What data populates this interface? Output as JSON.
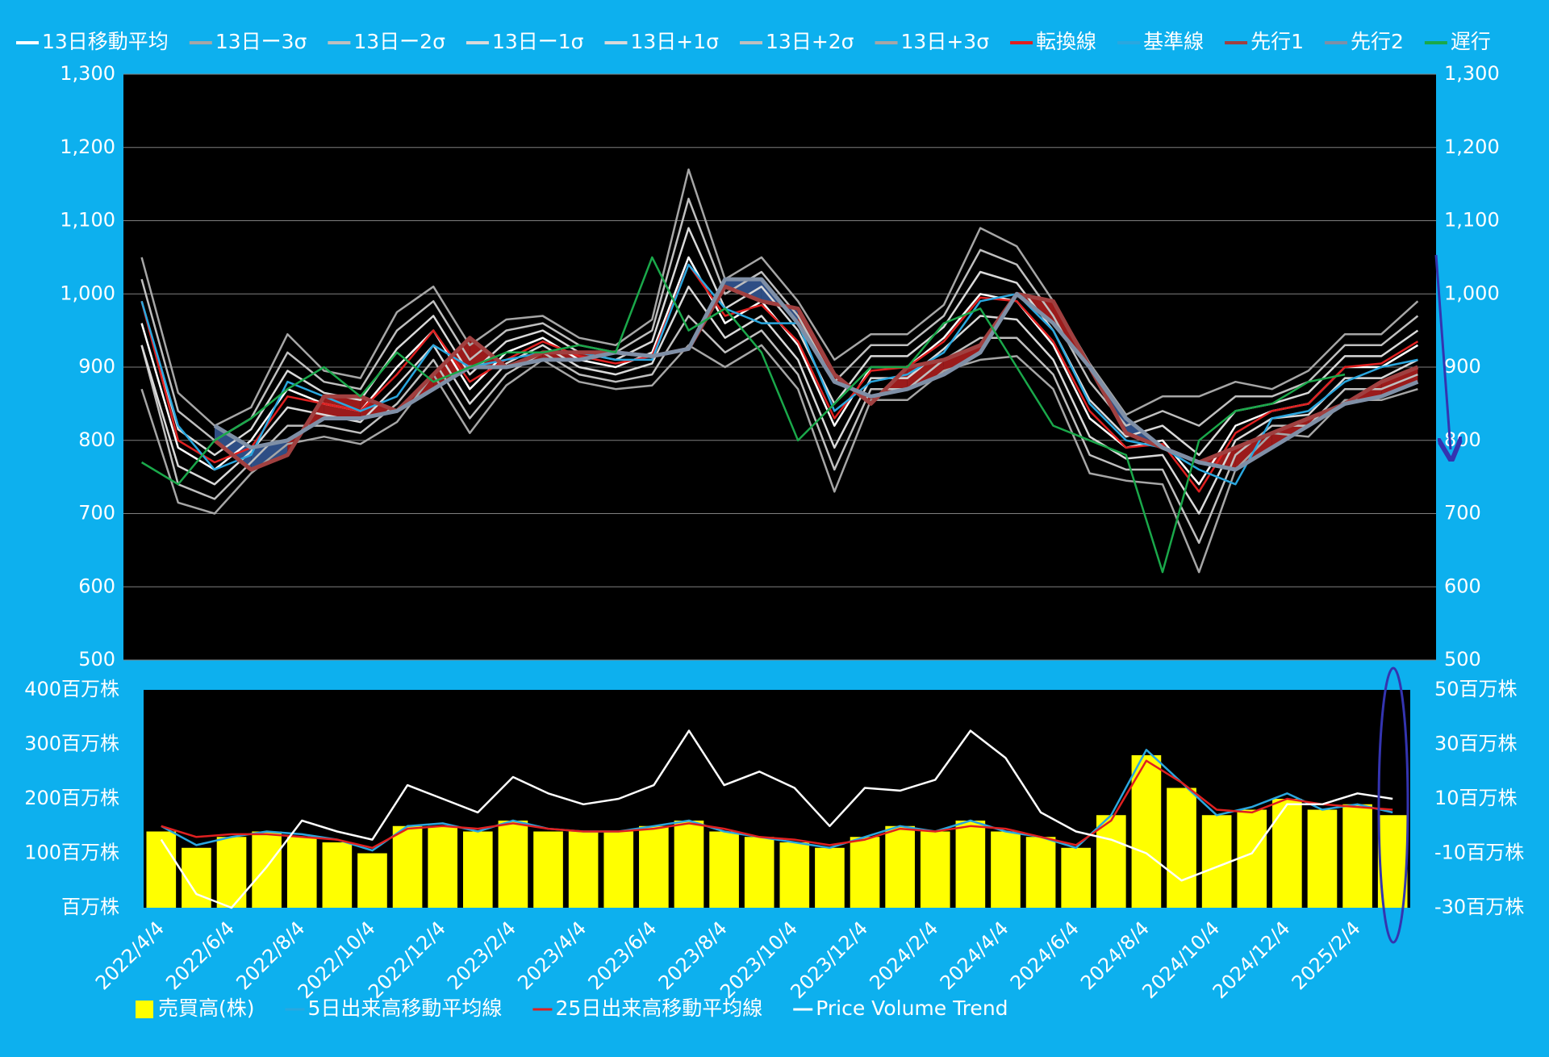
{
  "chart_data": [
    {
      "type": "line",
      "ylim": [
        500,
        1300
      ],
      "yticks": [
        500,
        600,
        700,
        800,
        900,
        {
          "value": 1000,
          "label": "1,000"
        },
        {
          "value": 1100,
          "label": "1,100"
        },
        {
          "value": 1200,
          "label": "1,200"
        },
        {
          "value": 1300,
          "label": "1,300"
        }
      ],
      "grid": true,
      "series": [
        {
          "name": "13日移動平均",
          "color": "#ffffff",
          "values": [
            960,
            790,
            760,
            800,
            870,
            850,
            840,
            900,
            950,
            870,
            920,
            940,
            910,
            900,
            920,
            1050,
            960,
            990,
            930,
            820,
            900,
            900,
            940,
            1000,
            990,
            930,
            830,
            790,
            800,
            740,
            820,
            840,
            850,
            900,
            900,
            930
          ]
        },
        {
          "name": "13日ー3σ",
          "color": "#a6a6a6",
          "values": [
            870,
            715,
            700,
            755,
            795,
            805,
            795,
            825,
            890,
            810,
            875,
            910,
            880,
            870,
            875,
            930,
            900,
            930,
            870,
            730,
            855,
            855,
            895,
            910,
            915,
            870,
            755,
            745,
            740,
            620,
            760,
            810,
            805,
            855,
            855,
            870
          ]
        },
        {
          "name": "13日ー2σ",
          "color": "#bfbfbf",
          "values": [
            930,
            740,
            720,
            770,
            820,
            820,
            810,
            850,
            910,
            830,
            890,
            920,
            890,
            880,
            890,
            970,
            920,
            950,
            890,
            760,
            870,
            870,
            910,
            940,
            940,
            890,
            780,
            760,
            760,
            660,
            780,
            820,
            820,
            870,
            870,
            890
          ]
        },
        {
          "name": "13日ー1σ",
          "color": "#d9d9d9",
          "values": [
            930,
            765,
            740,
            785,
            845,
            835,
            825,
            875,
            930,
            850,
            905,
            930,
            900,
            890,
            905,
            1010,
            940,
            970,
            910,
            790,
            885,
            885,
            925,
            970,
            965,
            910,
            805,
            775,
            780,
            700,
            800,
            830,
            835,
            885,
            885,
            910
          ]
        },
        {
          "name": "13日+1σ",
          "color": "#d9d9d9",
          "values": [
            990,
            815,
            780,
            815,
            895,
            865,
            855,
            925,
            970,
            890,
            935,
            950,
            920,
            910,
            935,
            1090,
            980,
            1010,
            950,
            850,
            915,
            915,
            955,
            1030,
            1015,
            950,
            855,
            805,
            820,
            780,
            840,
            850,
            865,
            915,
            915,
            950
          ]
        },
        {
          "name": "13日+2σ",
          "color": "#bfbfbf",
          "values": [
            1020,
            840,
            800,
            830,
            920,
            880,
            870,
            950,
            990,
            910,
            950,
            960,
            930,
            920,
            950,
            1130,
            1000,
            1030,
            970,
            880,
            930,
            930,
            970,
            1060,
            1040,
            970,
            880,
            820,
            840,
            820,
            860,
            860,
            880,
            930,
            930,
            970
          ]
        },
        {
          "name": "13日+3σ",
          "color": "#a6a6a6",
          "values": [
            1050,
            865,
            820,
            845,
            945,
            895,
            885,
            975,
            1010,
            930,
            965,
            970,
            940,
            930,
            965,
            1170,
            1020,
            1050,
            990,
            910,
            945,
            945,
            985,
            1090,
            1065,
            990,
            905,
            835,
            860,
            860,
            880,
            870,
            895,
            945,
            945,
            990
          ]
        },
        {
          "name": "転換線",
          "color": "#e02020",
          "values": [
            990,
            800,
            770,
            790,
            860,
            850,
            840,
            890,
            950,
            880,
            910,
            935,
            915,
            905,
            915,
            1040,
            970,
            985,
            935,
            830,
            895,
            900,
            935,
            995,
            990,
            935,
            840,
            790,
            795,
            730,
            810,
            840,
            850,
            900,
            905,
            935
          ]
        },
        {
          "name": "基準線",
          "color": "#2aa7df",
          "values": [
            990,
            820,
            760,
            780,
            880,
            860,
            840,
            860,
            930,
            900,
            910,
            920,
            920,
            910,
            910,
            1040,
            980,
            960,
            960,
            840,
            880,
            890,
            920,
            990,
            1000,
            950,
            850,
            800,
            790,
            760,
            740,
            830,
            840,
            880,
            900,
            910
          ]
        },
        {
          "name": "先行1",
          "color": "#a04040",
          "cloud_fill": "#9b1b1b",
          "values": [
            null,
            null,
            800,
            760,
            780,
            860,
            860,
            840,
            890,
            940,
            900,
            920,
            920,
            920,
            915,
            925,
            1010,
            990,
            980,
            890,
            850,
            900,
            910,
            930,
            1000,
            990,
            900,
            810,
            790,
            770,
            790,
            810,
            830,
            850,
            880,
            900
          ]
        },
        {
          "name": "先行2",
          "color": "#7f8fa6",
          "cloud_fill": "#2e4e85",
          "values": [
            null,
            null,
            820,
            790,
            800,
            830,
            830,
            840,
            870,
            900,
            900,
            910,
            910,
            920,
            915,
            925,
            1020,
            1020,
            960,
            880,
            860,
            870,
            890,
            920,
            1000,
            960,
            900,
            830,
            790,
            770,
            760,
            790,
            820,
            850,
            860,
            880
          ]
        },
        {
          "name": "遅行",
          "color": "#1aa84a",
          "values": [
            770,
            740,
            800,
            830,
            870,
            900,
            860,
            920,
            880,
            900,
            920,
            920,
            930,
            920,
            1050,
            950,
            980,
            920,
            800,
            850,
            900,
            900,
            960,
            980,
            900,
            820,
            800,
            780,
            620,
            800,
            840,
            850,
            880,
            890,
            null,
            null
          ]
        }
      ]
    },
    {
      "type": "bar",
      "categories": [
        "2022/4/4",
        null,
        "2022/6/4",
        null,
        "2022/8/4",
        null,
        "2022/10/4",
        null,
        "2022/12/4",
        null,
        "2023/2/4",
        null,
        "2023/4/4",
        null,
        "2023/6/4",
        null,
        "2023/8/4",
        null,
        "2023/10/4",
        null,
        "2023/12/4",
        null,
        "2024/2/4",
        null,
        "2024/4/4",
        null,
        "2024/6/4",
        null,
        "2024/8/4",
        null,
        "2024/10/4",
        null,
        "2024/12/4",
        null,
        "2025/2/4",
        null
      ],
      "ylim": [
        0,
        400
      ],
      "yticks": [
        {
          "value": 0,
          "label": "百万株"
        },
        {
          "value": 100,
          "label": "100百万株"
        },
        {
          "value": 200,
          "label": "200百万株"
        },
        {
          "value": 300,
          "label": "300百万株"
        },
        {
          "value": 400,
          "label": "400百万株"
        }
      ],
      "y2lim": [
        -30,
        50
      ],
      "y2ticks": [
        {
          "value": -30,
          "label": "-30百万株"
        },
        {
          "value": -10,
          "label": "-10百万株"
        },
        {
          "value": 10,
          "label": "10百万株"
        },
        {
          "value": 30,
          "label": "30百万株"
        },
        {
          "value": 50,
          "label": "50百万株"
        }
      ],
      "grid": false,
      "series": [
        {
          "name": "売買高(株)",
          "type": "bar",
          "color": "#ffff00",
          "values": [
            140,
            110,
            130,
            140,
            130,
            120,
            100,
            150,
            150,
            140,
            160,
            140,
            140,
            140,
            150,
            160,
            140,
            130,
            120,
            110,
            130,
            150,
            140,
            160,
            140,
            130,
            110,
            170,
            280,
            220,
            170,
            180,
            200,
            180,
            190,
            170
          ]
        },
        {
          "name": "5日出来高移動平均線",
          "type": "line",
          "color": "#2aa7df",
          "values": [
            150,
            115,
            130,
            140,
            135,
            125,
            105,
            150,
            155,
            140,
            160,
            145,
            140,
            140,
            150,
            160,
            140,
            130,
            120,
            110,
            130,
            150,
            140,
            160,
            140,
            130,
            110,
            170,
            290,
            230,
            170,
            185,
            210,
            180,
            190,
            175
          ]
        },
        {
          "name": "25日出来高移動平均線",
          "type": "line",
          "color": "#e02020",
          "values": [
            150,
            130,
            135,
            135,
            130,
            125,
            110,
            145,
            150,
            145,
            155,
            145,
            140,
            140,
            145,
            155,
            145,
            130,
            125,
            115,
            125,
            145,
            140,
            150,
            145,
            130,
            115,
            160,
            270,
            230,
            180,
            175,
            200,
            190,
            185,
            180
          ]
        },
        {
          "name": "Price Volume Trend",
          "type": "line",
          "axis": "y2",
          "color": "#ffffff",
          "values": [
            -5,
            -25,
            -30,
            -15,
            2,
            -2,
            -5,
            15,
            10,
            5,
            18,
            12,
            8,
            10,
            15,
            35,
            15,
            20,
            14,
            0,
            14,
            13,
            17,
            35,
            25,
            5,
            -2,
            -5,
            -10,
            -20,
            -15,
            -10,
            8,
            8,
            12,
            10
          ]
        }
      ]
    }
  ]
}
